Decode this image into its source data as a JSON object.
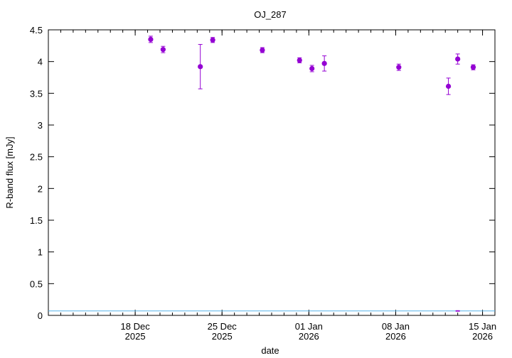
{
  "chart_data": {
    "type": "scatter",
    "title": "OJ_287",
    "xlabel": "date",
    "ylabel": "R-band flux [mJy]",
    "xlim": [
      "2025-12-11",
      "2026-01-16"
    ],
    "ylim": [
      0,
      4.5
    ],
    "grid": false,
    "legend": "none",
    "y_ticks": [
      "0",
      "0.5",
      "1",
      "1.5",
      "2",
      "2.5",
      "3",
      "3.5",
      "4",
      "4.5"
    ],
    "x_ticks": [
      {
        "date": "2025-12-18",
        "line1": "18 Dec",
        "line2": "2025"
      },
      {
        "date": "2025-12-25",
        "line1": "25 Dec",
        "line2": "2025"
      },
      {
        "date": "2026-01-01",
        "line1": "01 Jan",
        "line2": "2026"
      },
      {
        "date": "2026-01-08",
        "line1": "08 Jan",
        "line2": "2026"
      },
      {
        "date": "2026-01-15",
        "line1": "15 Jan",
        "line2": "2026"
      }
    ],
    "series": [
      {
        "color": "#9400d3",
        "points": [
          {
            "x": "2025-12-19 06:00",
            "y": 4.35,
            "err": 0.05
          },
          {
            "x": "2025-12-20 06:00",
            "y": 4.19,
            "err": 0.05
          },
          {
            "x": "2025-12-23 06:00",
            "y": 3.92,
            "err": 0.35
          },
          {
            "x": "2025-12-24 06:00",
            "y": 4.34,
            "err": 0.04
          },
          {
            "x": "2025-12-28 06:00",
            "y": 4.18,
            "err": 0.04
          },
          {
            "x": "2025-12-31 06:00",
            "y": 4.02,
            "err": 0.04
          },
          {
            "x": "2026-01-01 06:00",
            "y": 3.89,
            "err": 0.05
          },
          {
            "x": "2026-01-02 06:00",
            "y": 3.97,
            "err": 0.12
          },
          {
            "x": "2026-01-08 06:00",
            "y": 3.91,
            "err": 0.05
          },
          {
            "x": "2026-01-12 06:00",
            "y": 3.61,
            "err": 0.13
          },
          {
            "x": "2026-01-13 00:00",
            "y": 4.04,
            "err": 0.08
          },
          {
            "x": "2026-01-14 06:00",
            "y": 3.91,
            "err": 0.04
          }
        ]
      }
    ],
    "reference_line": {
      "y": 0.07,
      "color": "#56b4e9"
    },
    "detached_errorbar": {
      "x": "2026-01-13 00:00",
      "y": 0.07,
      "err": 0.005,
      "color": "#9400d3"
    }
  }
}
